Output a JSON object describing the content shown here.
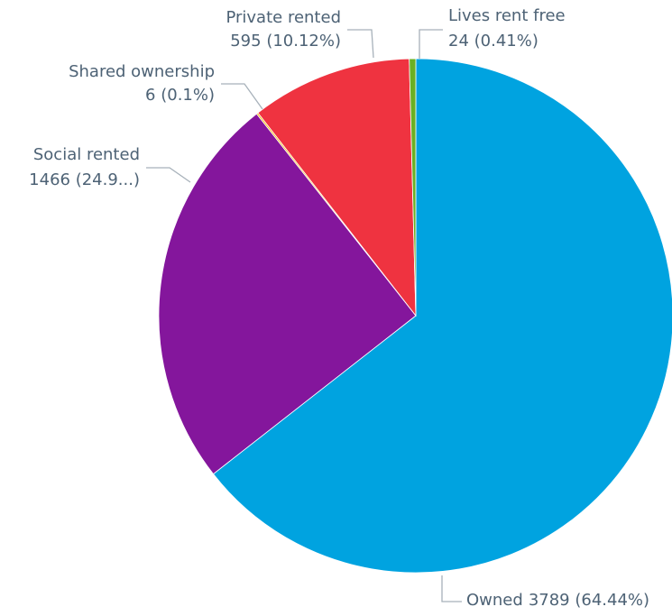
{
  "chart_data": {
    "type": "pie",
    "categories": [
      "Owned",
      "Social rented",
      "Shared ownership",
      "Private rented",
      "Lives rent free"
    ],
    "values": [
      3789,
      1466,
      6,
      595,
      24
    ],
    "value_labels": [
      "3789 (64.44%)",
      "1466 (24.9...)",
      "6 (0.1%)",
      "595 (10.12%)",
      "24 (0.41%)"
    ],
    "colors": [
      "#00a3e0",
      "#84169c",
      "#f2b700",
      "#ef3340",
      "#6ab023"
    ]
  }
}
